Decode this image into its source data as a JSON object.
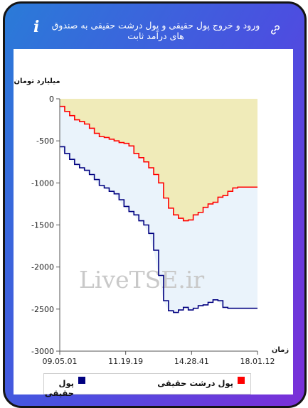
{
  "header": {
    "title": "ورود و خروج پول حقیقی و پول درشت حقیقی به صندوق های درآمد ثابت",
    "info_icon": "i",
    "link_icon": "link-icon"
  },
  "watermark": "LiveTSE.ir",
  "colors": {
    "real_money": "#000080",
    "big_real_money": "#ff0000",
    "area_upper": "#f0ebb9",
    "area_lower": "#eaf3fb"
  },
  "chart_data": {
    "type": "area",
    "ylabel": "میلیارد تومان",
    "xlabel": "زمان",
    "ylim": [
      -3000,
      0
    ],
    "yticks": [
      "0",
      "-500",
      "-1000",
      "-1500",
      "-2000",
      "-2500",
      "-3000"
    ],
    "xticks": [
      "09.05.01",
      "11.19.19",
      "14.28.41",
      "18.01.12"
    ],
    "grid": false,
    "legend_position": "bottom",
    "series": [
      {
        "name": "پول درشت حقیقی",
        "color": "#ff0000",
        "values": [
          -90,
          -150,
          -200,
          -250,
          -270,
          -300,
          -350,
          -410,
          -450,
          -460,
          -480,
          -500,
          -520,
          -530,
          -560,
          -650,
          -700,
          -750,
          -820,
          -900,
          -1000,
          -1180,
          -1300,
          -1380,
          -1420,
          -1450,
          -1440,
          -1380,
          -1350,
          -1290,
          -1250,
          -1230,
          -1170,
          -1150,
          -1100,
          -1060,
          -1050,
          -1050,
          -1050,
          -1050,
          -1050
        ]
      },
      {
        "name": "پول حقیقی",
        "color": "#000080",
        "values": [
          -570,
          -650,
          -720,
          -780,
          -820,
          -850,
          -900,
          -960,
          -1030,
          -1060,
          -1100,
          -1130,
          -1200,
          -1280,
          -1340,
          -1380,
          -1450,
          -1500,
          -1600,
          -1800,
          -2100,
          -2400,
          -2520,
          -2540,
          -2510,
          -2480,
          -2510,
          -2490,
          -2460,
          -2450,
          -2420,
          -2390,
          -2400,
          -2480,
          -2490,
          -2490,
          -2490,
          -2490,
          -2490,
          -2490,
          -2490
        ]
      }
    ]
  },
  "legend": {
    "big_real_label": "پول درشت حقیقی",
    "real_label": "پول حقیقی"
  }
}
